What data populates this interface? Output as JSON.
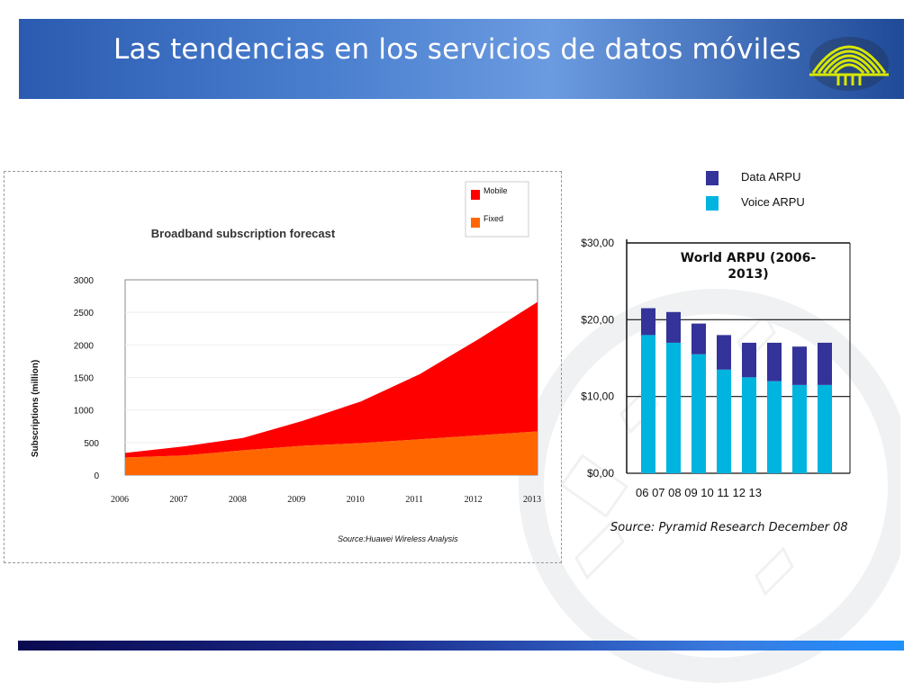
{
  "slide": {
    "title": "Las tendencias en los servicios de datos móviles"
  },
  "colors": {
    "mobile": "#ff0000",
    "fixed": "#ff6600",
    "voice_arpu": "#00b4e0",
    "data_arpu": "#333399",
    "header_blue": "#2b5bb0"
  },
  "chart_data": [
    {
      "type": "area",
      "title": "Broadband subscription forecast",
      "ylabel": "Subscriptions (million)",
      "xlabel": "",
      "x": [
        "2006",
        "2007",
        "2008",
        "2009",
        "2010",
        "2011",
        "2012",
        "2013"
      ],
      "yticks": [
        "0",
        "500",
        "1000",
        "1500",
        "2000",
        "2500",
        "3000"
      ],
      "ylim": [
        0,
        3000
      ],
      "stacked": true,
      "series": [
        {
          "name": "Fixed",
          "values": [
            270,
            300,
            380,
            450,
            490,
            550,
            610,
            670
          ]
        },
        {
          "name": "Mobile",
          "values": [
            70,
            140,
            190,
            380,
            640,
            1000,
            1480,
            1990
          ]
        }
      ],
      "legend": {
        "placement": "top-right",
        "items": [
          "Mobile",
          "Fixed"
        ]
      },
      "source": "Source:Huawei Wireless Analysis"
    },
    {
      "type": "bar",
      "stacked": true,
      "title": "World ARPU (2006-2013)",
      "categories": [
        "06",
        "07",
        "08",
        "09",
        "10",
        "11",
        "12",
        "13"
      ],
      "categories_label": "06 07 08 09 10 11 12 13",
      "yticks": [
        "$0,00",
        "$10,00",
        "$20,00",
        "$30,00"
      ],
      "ylim": [
        0,
        30
      ],
      "series": [
        {
          "name": "Voice ARPU",
          "values": [
            18,
            17,
            15.5,
            13.5,
            12.5,
            12,
            11.5,
            11.5
          ]
        },
        {
          "name": "Data ARPU",
          "values": [
            3.5,
            4,
            4,
            4.5,
            4.5,
            5,
            5,
            5.5
          ]
        }
      ],
      "legend": {
        "placement": "top",
        "items": [
          "Data ARPU",
          "Voice ARPU"
        ]
      },
      "source": "Source: Pyramid Research December 08"
    }
  ]
}
